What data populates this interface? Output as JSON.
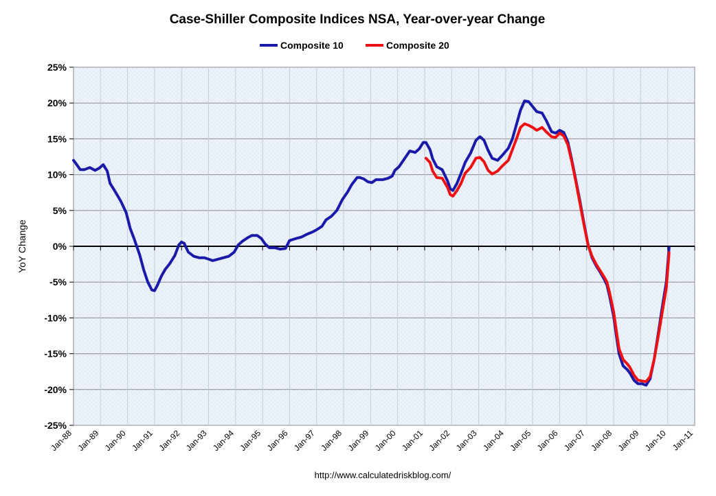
{
  "chart_data": {
    "type": "line",
    "title": "Case-Shiller Composite Indices NSA, Year-over-year Change",
    "ylabel": "YoY Change",
    "xlabel": "",
    "ylim": [
      -25,
      25
    ],
    "yticks": [
      25,
      20,
      15,
      10,
      5,
      0,
      -5,
      -10,
      -15,
      -20,
      -25
    ],
    "ytick_labels": [
      "25%",
      "20%",
      "15%",
      "10%",
      "5%",
      "0%",
      "-5%",
      "-10%",
      "-15%",
      "-20%",
      "-25%"
    ],
    "xlim": [
      1988.0,
      2011.0
    ],
    "xticks": [
      1988,
      1989,
      1990,
      1991,
      1992,
      1993,
      1994,
      1995,
      1996,
      1997,
      1998,
      1999,
      2000,
      2001,
      2002,
      2003,
      2004,
      2005,
      2006,
      2007,
      2008,
      2009,
      2010,
      2011
    ],
    "xtick_labels": [
      "Jan-88",
      "Jan-89",
      "Jan-90",
      "Jan-91",
      "Jan-92",
      "Jan-93",
      "Jan-94",
      "Jan-95",
      "Jan-96",
      "Jan-97",
      "Jan-98",
      "Jan-99",
      "Jan-00",
      "Jan-01",
      "Jan-02",
      "Jan-03",
      "Jan-04",
      "Jan-05",
      "Jan-06",
      "Jan-07",
      "Jan-08",
      "Jan-09",
      "Jan-10",
      "Jan-11"
    ],
    "grid": true,
    "legend_position": "top-center",
    "source": "http://www.calculatedriskblog.com/",
    "series": [
      {
        "name": "Composite 10",
        "color": "#1a1aa8",
        "points": [
          [
            1988.0,
            12.0
          ],
          [
            1988.1,
            11.5
          ],
          [
            1988.25,
            10.7
          ],
          [
            1988.4,
            10.7
          ],
          [
            1988.6,
            11.0
          ],
          [
            1988.8,
            10.6
          ],
          [
            1988.95,
            10.9
          ],
          [
            1989.1,
            11.4
          ],
          [
            1989.25,
            10.5
          ],
          [
            1989.35,
            8.8
          ],
          [
            1989.55,
            7.6
          ],
          [
            1989.75,
            6.3
          ],
          [
            1989.95,
            4.7
          ],
          [
            1990.1,
            2.5
          ],
          [
            1990.25,
            1.0
          ],
          [
            1990.45,
            -1.2
          ],
          [
            1990.6,
            -3.3
          ],
          [
            1990.75,
            -5.0
          ],
          [
            1990.9,
            -6.1
          ],
          [
            1991.0,
            -6.2
          ],
          [
            1991.1,
            -5.5
          ],
          [
            1991.25,
            -4.2
          ],
          [
            1991.4,
            -3.2
          ],
          [
            1991.55,
            -2.5
          ],
          [
            1991.75,
            -1.3
          ],
          [
            1991.9,
            0.2
          ],
          [
            1992.0,
            0.6
          ],
          [
            1992.1,
            0.4
          ],
          [
            1992.25,
            -0.8
          ],
          [
            1992.45,
            -1.4
          ],
          [
            1992.65,
            -1.6
          ],
          [
            1992.85,
            -1.6
          ],
          [
            1993.0,
            -1.8
          ],
          [
            1993.15,
            -2.0
          ],
          [
            1993.35,
            -1.8
          ],
          [
            1993.55,
            -1.6
          ],
          [
            1993.75,
            -1.4
          ],
          [
            1993.95,
            -0.8
          ],
          [
            1994.1,
            0.2
          ],
          [
            1994.25,
            0.7
          ],
          [
            1994.45,
            1.2
          ],
          [
            1994.6,
            1.5
          ],
          [
            1994.8,
            1.5
          ],
          [
            1994.95,
            1.1
          ],
          [
            1995.1,
            0.3
          ],
          [
            1995.25,
            -0.2
          ],
          [
            1995.45,
            -0.2
          ],
          [
            1995.65,
            -0.4
          ],
          [
            1995.85,
            -0.3
          ],
          [
            1996.0,
            0.8
          ],
          [
            1996.25,
            1.1
          ],
          [
            1996.45,
            1.3
          ],
          [
            1996.65,
            1.7
          ],
          [
            1996.85,
            2.0
          ],
          [
            1997.0,
            2.3
          ],
          [
            1997.2,
            2.8
          ],
          [
            1997.35,
            3.7
          ],
          [
            1997.55,
            4.2
          ],
          [
            1997.75,
            5.0
          ],
          [
            1997.95,
            6.5
          ],
          [
            1998.15,
            7.6
          ],
          [
            1998.3,
            8.6
          ],
          [
            1998.5,
            9.6
          ],
          [
            1998.6,
            9.6
          ],
          [
            1998.75,
            9.4
          ],
          [
            1998.9,
            9.0
          ],
          [
            1999.05,
            8.9
          ],
          [
            1999.2,
            9.3
          ],
          [
            1999.45,
            9.3
          ],
          [
            1999.65,
            9.5
          ],
          [
            1999.8,
            9.8
          ],
          [
            1999.9,
            10.6
          ],
          [
            2000.05,
            11.1
          ],
          [
            2000.25,
            12.2
          ],
          [
            2000.45,
            13.3
          ],
          [
            2000.65,
            13.1
          ],
          [
            2000.8,
            13.6
          ],
          [
            2000.95,
            14.5
          ],
          [
            2001.05,
            14.5
          ],
          [
            2001.2,
            13.5
          ],
          [
            2001.3,
            12.2
          ],
          [
            2001.45,
            11.1
          ],
          [
            2001.65,
            10.7
          ],
          [
            2001.85,
            9.1
          ],
          [
            2001.95,
            8.0
          ],
          [
            2002.05,
            7.8
          ],
          [
            2002.2,
            8.8
          ],
          [
            2002.35,
            10.2
          ],
          [
            2002.5,
            11.7
          ],
          [
            2002.7,
            13.0
          ],
          [
            2002.9,
            14.8
          ],
          [
            2003.05,
            15.3
          ],
          [
            2003.2,
            14.8
          ],
          [
            2003.35,
            13.4
          ],
          [
            2003.5,
            12.3
          ],
          [
            2003.7,
            12.0
          ],
          [
            2003.9,
            12.8
          ],
          [
            2004.1,
            13.7
          ],
          [
            2004.25,
            15.0
          ],
          [
            2004.4,
            17.0
          ],
          [
            2004.55,
            19.0
          ],
          [
            2004.7,
            20.3
          ],
          [
            2004.85,
            20.2
          ],
          [
            2005.0,
            19.5
          ],
          [
            2005.15,
            18.8
          ],
          [
            2005.35,
            18.6
          ],
          [
            2005.5,
            17.6
          ],
          [
            2005.7,
            16.0
          ],
          [
            2005.85,
            15.8
          ],
          [
            2006.0,
            16.2
          ],
          [
            2006.15,
            15.9
          ],
          [
            2006.3,
            14.6
          ],
          [
            2006.45,
            12.0
          ],
          [
            2006.6,
            9.2
          ],
          [
            2006.75,
            6.3
          ],
          [
            2006.9,
            3.2
          ],
          [
            2007.05,
            0.3
          ],
          [
            2007.2,
            -1.6
          ],
          [
            2007.35,
            -2.7
          ],
          [
            2007.5,
            -3.6
          ],
          [
            2007.65,
            -4.6
          ],
          [
            2007.75,
            -5.4
          ],
          [
            2007.85,
            -7.0
          ],
          [
            2008.0,
            -9.8
          ],
          [
            2008.1,
            -12.5
          ],
          [
            2008.2,
            -15.0
          ],
          [
            2008.35,
            -16.7
          ],
          [
            2008.5,
            -17.2
          ],
          [
            2008.6,
            -17.7
          ],
          [
            2008.75,
            -18.7
          ],
          [
            2008.9,
            -19.2
          ],
          [
            2009.05,
            -19.2
          ],
          [
            2009.2,
            -19.4
          ],
          [
            2009.35,
            -18.5
          ],
          [
            2009.5,
            -15.8
          ],
          [
            2009.65,
            -12.2
          ],
          [
            2009.8,
            -8.5
          ],
          [
            2009.95,
            -5.0
          ],
          [
            2010.05,
            -0.2
          ]
        ]
      },
      {
        "name": "Composite 20",
        "color": "#ee1111",
        "points": [
          [
            2001.05,
            12.3
          ],
          [
            2001.2,
            11.7
          ],
          [
            2001.3,
            10.5
          ],
          [
            2001.45,
            9.6
          ],
          [
            2001.65,
            9.5
          ],
          [
            2001.85,
            8.2
          ],
          [
            2001.95,
            7.2
          ],
          [
            2002.05,
            7.0
          ],
          [
            2002.2,
            7.8
          ],
          [
            2002.35,
            8.8
          ],
          [
            2002.5,
            10.2
          ],
          [
            2002.7,
            11.0
          ],
          [
            2002.9,
            12.3
          ],
          [
            2003.05,
            12.4
          ],
          [
            2003.2,
            11.8
          ],
          [
            2003.35,
            10.6
          ],
          [
            2003.5,
            10.1
          ],
          [
            2003.7,
            10.5
          ],
          [
            2003.9,
            11.3
          ],
          [
            2004.1,
            12.0
          ],
          [
            2004.25,
            13.5
          ],
          [
            2004.4,
            15.0
          ],
          [
            2004.55,
            16.6
          ],
          [
            2004.7,
            17.1
          ],
          [
            2004.85,
            16.9
          ],
          [
            2005.0,
            16.6
          ],
          [
            2005.15,
            16.2
          ],
          [
            2005.35,
            16.6
          ],
          [
            2005.5,
            16.0
          ],
          [
            2005.7,
            15.3
          ],
          [
            2005.85,
            15.2
          ],
          [
            2006.0,
            15.8
          ],
          [
            2006.15,
            15.4
          ],
          [
            2006.3,
            14.2
          ],
          [
            2006.45,
            11.8
          ],
          [
            2006.6,
            9.0
          ],
          [
            2006.75,
            6.0
          ],
          [
            2006.9,
            3.0
          ],
          [
            2007.05,
            0.2
          ],
          [
            2007.2,
            -1.4
          ],
          [
            2007.35,
            -2.5
          ],
          [
            2007.5,
            -3.4
          ],
          [
            2007.65,
            -4.3
          ],
          [
            2007.75,
            -5.0
          ],
          [
            2007.85,
            -6.5
          ],
          [
            2008.0,
            -9.2
          ],
          [
            2008.1,
            -11.8
          ],
          [
            2008.2,
            -14.3
          ],
          [
            2008.35,
            -15.8
          ],
          [
            2008.5,
            -16.4
          ],
          [
            2008.6,
            -16.9
          ],
          [
            2008.75,
            -18.0
          ],
          [
            2008.9,
            -18.7
          ],
          [
            2009.05,
            -18.8
          ],
          [
            2009.2,
            -18.9
          ],
          [
            2009.35,
            -18.2
          ],
          [
            2009.5,
            -15.8
          ],
          [
            2009.65,
            -12.6
          ],
          [
            2009.8,
            -9.2
          ],
          [
            2009.95,
            -5.8
          ],
          [
            2010.05,
            -0.9
          ]
        ]
      }
    ]
  }
}
